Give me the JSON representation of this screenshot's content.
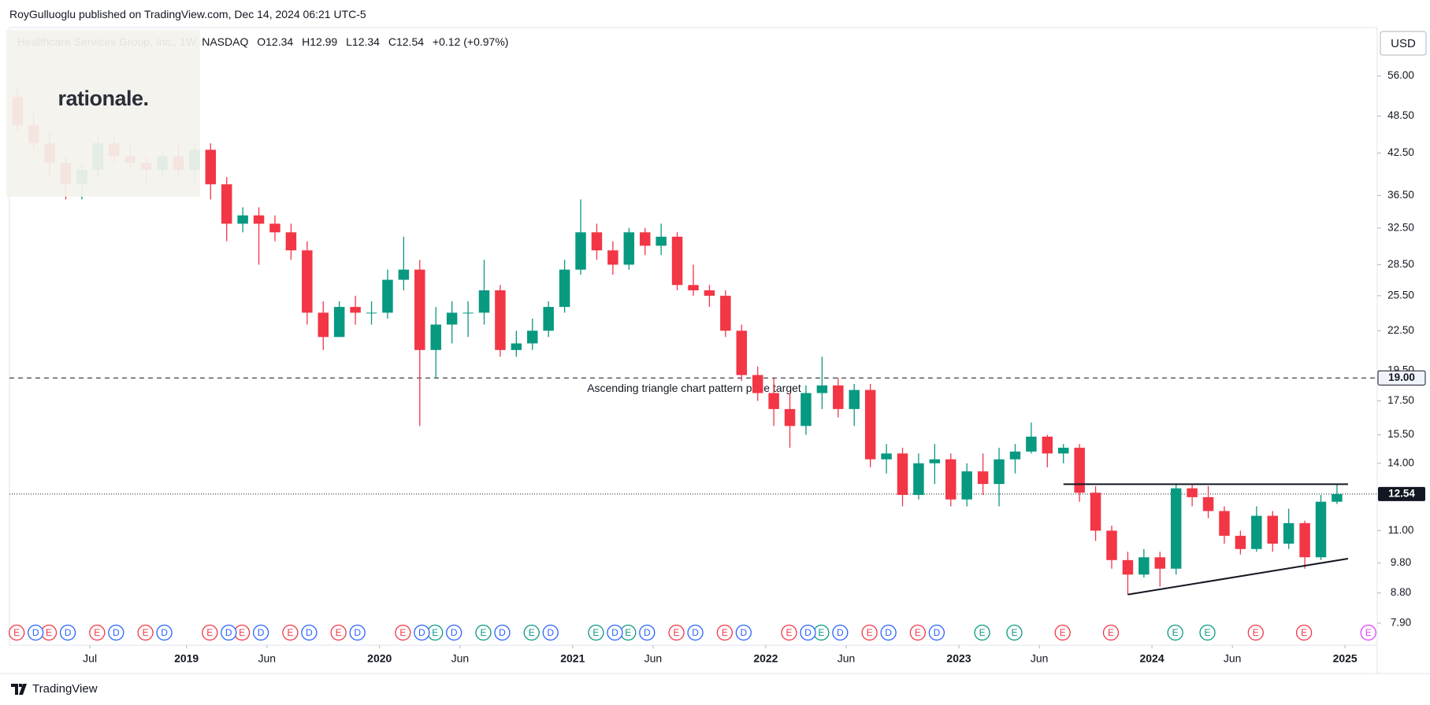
{
  "chart_data": {
    "type": "candlestick",
    "published": "RoyGulluoglu published on TradingView.com, Dec 14, 2024 06:21 UTC-5",
    "title": "Healthcare Services Group, Inc., 1W, NASDAQ",
    "quote_labels": [
      "O",
      "H",
      "L",
      "C"
    ],
    "quote": {
      "open": 12.34,
      "high": 12.99,
      "low": 12.34,
      "close": 12.54,
      "change": "+0.12 (+0.97%)"
    },
    "watermark": "rationale.",
    "currency": "USD",
    "footer": "TradingView",
    "log_scale": true,
    "up_color": "#089981",
    "down_color": "#f23645",
    "ylim": [
      7.3,
      66.6
    ],
    "yticks": [
      {
        "value": 56,
        "label": "56.00"
      },
      {
        "value": 48.5,
        "label": "48.50"
      },
      {
        "value": 42.5,
        "label": "42.50"
      },
      {
        "value": 36.5,
        "label": "36.50"
      },
      {
        "value": 32.5,
        "label": "32.50"
      },
      {
        "value": 28.5,
        "label": "28.50"
      },
      {
        "value": 25.5,
        "label": "25.50"
      },
      {
        "value": 22.5,
        "label": "22.50"
      },
      {
        "value": 19.5,
        "label": "19.50"
      },
      {
        "value": 17.5,
        "label": "17.50"
      },
      {
        "value": 15.5,
        "label": "15.50"
      },
      {
        "value": 14,
        "label": "14.00"
      },
      {
        "value": 11,
        "label": "11.00"
      },
      {
        "value": 9.8,
        "label": "9.80"
      },
      {
        "value": 8.8,
        "label": "8.80"
      },
      {
        "value": 7.9,
        "label": "7.90"
      }
    ],
    "xlim": [
      "2018-02",
      "2025-03"
    ],
    "xticks": [
      {
        "value": "2018-07",
        "label": "Jul"
      },
      {
        "value": "2019-01",
        "label": "2019"
      },
      {
        "value": "2019-06",
        "label": "Jun"
      },
      {
        "value": "2020-01",
        "label": "2020"
      },
      {
        "value": "2020-06",
        "label": "Jun"
      },
      {
        "value": "2021-01",
        "label": "2021"
      },
      {
        "value": "2021-06",
        "label": "Jun"
      },
      {
        "value": "2022-01",
        "label": "2022"
      },
      {
        "value": "2022-06",
        "label": "Jun"
      },
      {
        "value": "2023-01",
        "label": "2023"
      },
      {
        "value": "2023-06",
        "label": "Jun"
      },
      {
        "value": "2024-01",
        "label": "2024"
      },
      {
        "value": "2024-06",
        "label": "Jun"
      },
      {
        "value": "2025-01",
        "label": "2025"
      }
    ],
    "x": [
      "2018-02",
      "2018-03",
      "2018-04",
      "2018-05",
      "2018-06",
      "2018-07",
      "2018-08",
      "2018-09",
      "2018-10",
      "2018-11",
      "2018-12",
      "2019-01",
      "2019-02",
      "2019-03",
      "2019-04",
      "2019-05",
      "2019-06",
      "2019-07",
      "2019-08",
      "2019-09",
      "2019-10",
      "2019-11",
      "2019-12",
      "2020-01",
      "2020-02",
      "2020-03",
      "2020-04",
      "2020-05",
      "2020-06",
      "2020-07",
      "2020-08",
      "2020-09",
      "2020-10",
      "2020-11",
      "2020-12",
      "2021-01",
      "2021-02",
      "2021-03",
      "2021-04",
      "2021-05",
      "2021-06",
      "2021-07",
      "2021-08",
      "2021-09",
      "2021-10",
      "2021-11",
      "2021-12",
      "2022-01",
      "2022-02",
      "2022-03",
      "2022-04",
      "2022-05",
      "2022-06",
      "2022-07",
      "2022-08",
      "2022-09",
      "2022-10",
      "2022-11",
      "2022-12",
      "2023-01",
      "2023-02",
      "2023-03",
      "2023-04",
      "2023-05",
      "2023-06",
      "2023-07",
      "2023-08",
      "2023-09",
      "2023-10",
      "2023-11",
      "2023-12",
      "2024-01",
      "2024-02",
      "2024-03",
      "2024-04",
      "2024-05",
      "2024-06",
      "2024-07",
      "2024-08",
      "2024-09",
      "2024-10",
      "2024-11",
      "2024-12"
    ],
    "open": [
      52,
      47,
      44,
      41,
      38,
      40,
      44,
      42,
      41,
      40,
      42,
      40,
      43,
      38,
      33,
      34,
      33,
      32,
      30,
      24,
      22,
      24.5,
      24,
      24,
      27,
      28,
      21,
      23,
      24,
      24,
      26,
      21,
      21.5,
      22.5,
      24.5,
      28,
      32,
      30,
      28.5,
      32,
      30.5,
      31.5,
      26.5,
      26,
      25.5,
      22.5,
      19.2,
      18,
      17,
      16,
      18,
      18.5,
      17,
      18.2,
      14.2,
      14.5,
      12.5,
      14,
      14.2,
      12.3,
      13.6,
      13,
      14.2,
      14.6,
      15.4,
      14.5,
      14.8,
      12.6,
      11,
      9.9,
      9.4,
      10,
      9.6,
      12.8,
      12.4,
      11.8,
      10.8,
      10.3,
      11.6,
      10.5,
      11.3,
      10,
      12.2
    ],
    "high": [
      54,
      49,
      46,
      42,
      41,
      45,
      45,
      44,
      42,
      43,
      44,
      44,
      44,
      39,
      35,
      35,
      34,
      33,
      31,
      25,
      25,
      25.5,
      25,
      28,
      31.5,
      29,
      24.5,
      25,
      25,
      29,
      26.5,
      22.5,
      23.5,
      25,
      29,
      36,
      33,
      31,
      32.5,
      32.5,
      33,
      32,
      28.5,
      26.5,
      26,
      23,
      19.8,
      19,
      18,
      18.5,
      20.5,
      19,
      18.6,
      18.6,
      15,
      14.8,
      14.5,
      15,
      14.5,
      14,
      14.5,
      14.8,
      15,
      16.2,
      15.5,
      15,
      15,
      12.9,
      11.2,
      10.2,
      10.3,
      10.2,
      13,
      13,
      12.9,
      12,
      11,
      12,
      11.8,
      11.9,
      11.4,
      12.5,
      12.99
    ],
    "low": [
      46,
      43,
      39,
      36,
      36,
      39,
      41,
      40,
      38,
      39,
      39,
      38,
      36,
      31,
      32,
      28.5,
      31,
      29,
      23,
      21,
      22,
      23,
      23,
      23.5,
      26,
      16,
      19,
      21.5,
      22,
      23,
      20.5,
      20.5,
      21,
      22,
      24,
      27.5,
      29,
      27.5,
      28,
      29.5,
      29.5,
      26,
      25.5,
      24.5,
      22,
      18.8,
      17.5,
      16,
      14.8,
      15.5,
      17,
      16.5,
      16,
      13.8,
      13.5,
      12,
      12.3,
      13,
      12,
      12,
      12.5,
      12,
      13.5,
      14.5,
      13.8,
      14,
      12.2,
      10.6,
      9.6,
      8.75,
      9.3,
      9,
      9.4,
      12,
      11.5,
      10.5,
      10.1,
      10.2,
      10.2,
      10.3,
      9.6,
      9.9,
      12.1
    ],
    "close": [
      47,
      44,
      41,
      38,
      40,
      44,
      42,
      41,
      40,
      42,
      40,
      43,
      38,
      33,
      34,
      33,
      32,
      30,
      24,
      22,
      24.5,
      24,
      24,
      27,
      28,
      21,
      23,
      24,
      24,
      26,
      21,
      21.5,
      22.5,
      24.5,
      28,
      32,
      30,
      28.5,
      32,
      30.5,
      31.5,
      26.5,
      26,
      25.5,
      22.5,
      19.2,
      18,
      17,
      16,
      18,
      18.5,
      17,
      18.2,
      14.2,
      14.5,
      12.5,
      14,
      14.2,
      12.3,
      13.6,
      13,
      14.2,
      14.6,
      15.4,
      14.5,
      14.8,
      12.6,
      11,
      9.9,
      9.4,
      10,
      9.6,
      12.8,
      12.4,
      11.8,
      10.8,
      10.3,
      11.6,
      10.5,
      11.3,
      10,
      12.2,
      12.54
    ],
    "target": {
      "value": 19,
      "label": "19.00",
      "text": "Ascending triangle chart pattern price target"
    },
    "trendlines": [
      {
        "x": [
          "2023-07",
          "2024-12"
        ],
        "y": [
          12.99,
          12.99
        ]
      },
      {
        "x": [
          "2023-11",
          "2024-12"
        ],
        "y": [
          8.75,
          9.95
        ]
      }
    ],
    "events": {
      "earnings": {
        "label": "E",
        "x": [
          "2018-02",
          "2018-04",
          "2018-07",
          "2018-10",
          "2019-02",
          "2019-04",
          "2019-07",
          "2019-10",
          "2020-02",
          "2020-04",
          "2020-07",
          "2020-10",
          "2021-02",
          "2021-04",
          "2021-07",
          "2021-10",
          "2022-02",
          "2022-04",
          "2022-07",
          "2022-10",
          "2023-02",
          "2023-04",
          "2023-07",
          "2023-10",
          "2024-02",
          "2024-04",
          "2024-07",
          "2024-10",
          "2025-02"
        ],
        "colors": [
          "#f23645",
          "#f23645",
          "#f23645",
          "#f23645",
          "#f23645",
          "#f23645",
          "#f23645",
          "#f23645",
          "#f23645",
          "#089981",
          "#089981",
          "#089981",
          "#089981",
          "#089981",
          "#f23645",
          "#f23645",
          "#f23645",
          "#089981",
          "#f23645",
          "#f23645",
          "#089981",
          "#089981",
          "#f23645",
          "#f23645",
          "#089981",
          "#089981",
          "#f23645",
          "#f23645",
          "#e040fb"
        ]
      },
      "dividends": {
        "label": "D",
        "color": "#2962ff",
        "x": [
          "2018-02",
          "2018-04",
          "2018-07",
          "2018-10",
          "2019-02",
          "2019-04",
          "2019-07",
          "2019-10",
          "2020-02",
          "2020-04",
          "2020-07",
          "2020-10",
          "2021-02",
          "2021-04",
          "2021-07",
          "2021-10",
          "2022-02",
          "2022-04",
          "2022-07",
          "2022-10"
        ]
      }
    }
  }
}
